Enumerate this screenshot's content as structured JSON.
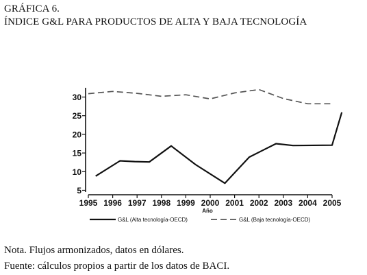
{
  "header": {
    "figure_label": "GRÁFICA 6.",
    "figure_title": "ÍNDICE G&L PARA PRODUCTOS DE ALTA Y BAJA TECNOLOGÍA"
  },
  "footer": {
    "note": "Nota. Flujos armonizados, datos en dólares.",
    "source": "Fuente: cálculos propios a partir de los datos de BACI."
  },
  "chart_data": {
    "type": "line",
    "title": "",
    "xlabel": "Año",
    "ylabel": "",
    "x_ticks": [
      "1995",
      "1996",
      "1997",
      "1998",
      "1999",
      "2000",
      "2001",
      "2002",
      "2003",
      "2004",
      "2005"
    ],
    "y_ticks": [
      5,
      10,
      15,
      20,
      25,
      30
    ],
    "xlim": [
      1995,
      2005
    ],
    "ylim": [
      5,
      32
    ],
    "grid": false,
    "legend_position": "bottom",
    "series": [
      {
        "name": "G&L (Alta tecnología-OECD)",
        "style": "solid",
        "color": "#111111",
        "x": [
          1995.3,
          1996.3,
          1996.9,
          1997.5,
          1998.4,
          1999.4,
          2000.6,
          2001.6,
          2002.7,
          2003.4,
          2005.0,
          2005.4
        ],
        "y": [
          8.8,
          12.9,
          12.7,
          12.6,
          16.9,
          11.9,
          6.9,
          13.9,
          17.5,
          17.0,
          17.1,
          25.9
        ]
      },
      {
        "name": "G&L (Baja tecnología-OECD)",
        "style": "dashed",
        "color": "#555555",
        "x": [
          1995.0,
          1996.0,
          1997.0,
          1998.0,
          1999.0,
          2000.0,
          2001.0,
          2002.0,
          2003.0,
          2004.0,
          2005.0
        ],
        "y": [
          30.9,
          31.5,
          31.0,
          30.2,
          30.6,
          29.5,
          31.1,
          32.0,
          29.6,
          28.2,
          28.2
        ]
      }
    ]
  }
}
